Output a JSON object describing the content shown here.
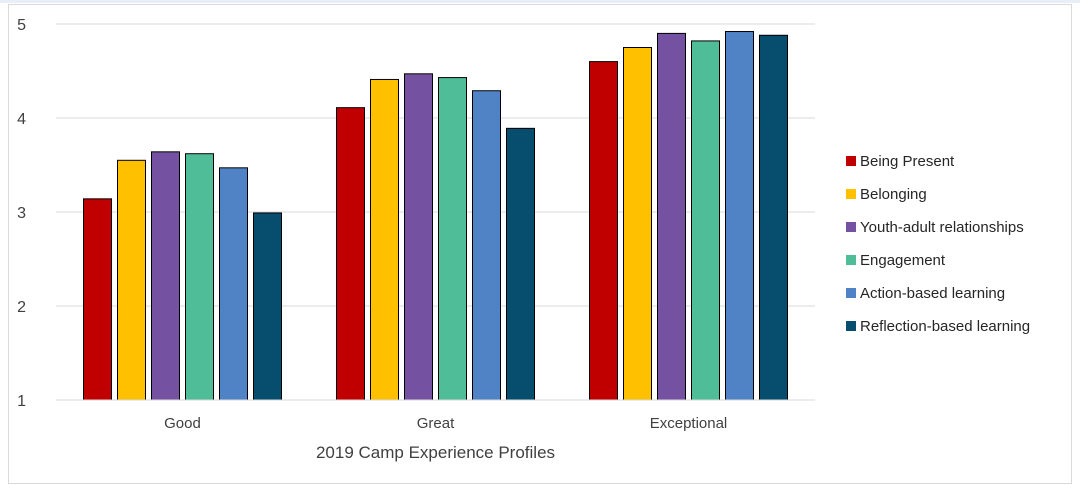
{
  "chart_data": {
    "type": "bar",
    "categories": [
      "Good",
      "Great",
      "Exceptional"
    ],
    "xlabel": "2019 Camp Experience Profiles",
    "ylabel": "",
    "ylim": [
      1,
      5
    ],
    "yticks": [
      "1",
      "2",
      "3",
      "4",
      "5"
    ],
    "grid": true,
    "legend_position": "right",
    "series": [
      {
        "name": "Being Present",
        "color": "#c00000",
        "values": [
          3.14,
          4.11,
          4.6
        ]
      },
      {
        "name": "Belonging",
        "color": "#ffc000",
        "values": [
          3.55,
          4.41,
          4.75
        ]
      },
      {
        "name": "Youth-adult relationships",
        "color": "#7451a1",
        "values": [
          3.64,
          4.47,
          4.9
        ]
      },
      {
        "name": "Engagement",
        "color": "#4fbd98",
        "values": [
          3.62,
          4.43,
          4.82
        ]
      },
      {
        "name": "Action-based learning",
        "color": "#5083c5",
        "values": [
          3.47,
          4.29,
          4.92
        ]
      },
      {
        "name": "Reflection-based learning",
        "color": "#064d6e",
        "values": [
          2.99,
          3.89,
          4.88
        ]
      }
    ]
  }
}
